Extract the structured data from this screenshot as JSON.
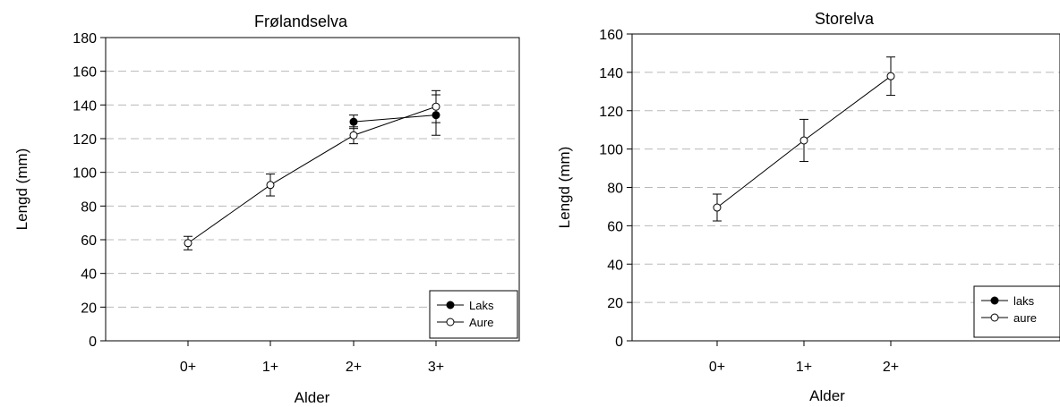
{
  "chart_data": [
    {
      "type": "line",
      "title": "Frølandselva",
      "xlabel": "Alder",
      "ylabel": "Lengd (mm)",
      "categories": [
        "0+",
        "1+",
        "2+",
        "3+"
      ],
      "ylim": [
        0,
        180
      ],
      "yticks": [
        0,
        20,
        40,
        60,
        80,
        100,
        120,
        140,
        160,
        180
      ],
      "grid": "horizontal dashed",
      "legend_position": "bottom-right",
      "series": [
        {
          "name": "Laks",
          "marker": "filled-circle",
          "points": [
            {
              "x": "2+",
              "y": 130,
              "err": 4
            },
            {
              "x": "3+",
              "y": 134,
              "err": 12
            }
          ]
        },
        {
          "name": "Aure",
          "marker": "open-circle",
          "points": [
            {
              "x": "0+",
              "y": 58,
              "err": 4
            },
            {
              "x": "1+",
              "y": 92.5,
              "err": 6.5
            },
            {
              "x": "2+",
              "y": 122,
              "err": 5
            },
            {
              "x": "3+",
              "y": 139,
              "err": 9.5
            }
          ]
        }
      ]
    },
    {
      "type": "line",
      "title": "Storelva",
      "xlabel": "Alder",
      "ylabel": "Lengd (mm)",
      "categories": [
        "0+",
        "1+",
        "2+"
      ],
      "ylim": [
        0,
        160
      ],
      "yticks": [
        0,
        20,
        40,
        60,
        80,
        100,
        120,
        140,
        160
      ],
      "grid": "horizontal dashed",
      "legend_position": "bottom-right",
      "series": [
        {
          "name": "laks",
          "marker": "filled-circle",
          "points": []
        },
        {
          "name": "aure",
          "marker": "open-circle",
          "points": [
            {
              "x": "0+",
              "y": 69.5,
              "err": 7
            },
            {
              "x": "1+",
              "y": 104.5,
              "err": 11
            },
            {
              "x": "2+",
              "y": 138,
              "err": 10
            }
          ]
        }
      ]
    }
  ]
}
